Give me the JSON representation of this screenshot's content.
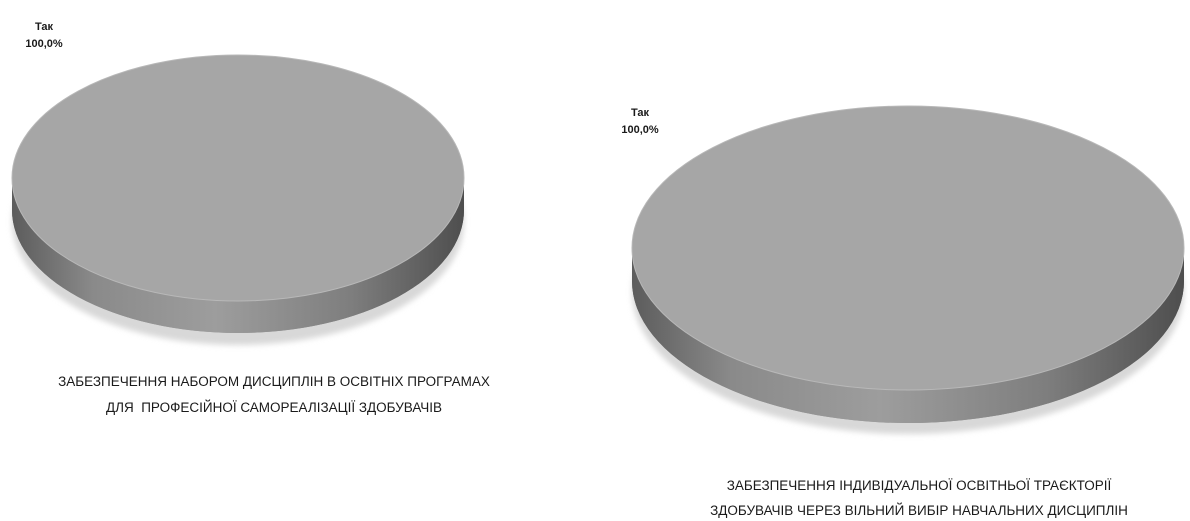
{
  "chart_data": [
    {
      "type": "pie",
      "categories": [
        "Так"
      ],
      "values": [
        100.0
      ],
      "data_labels": [
        {
          "category": "Так",
          "value": "100,0%"
        }
      ],
      "caption_lines": [
        "ЗАБЕЗПЕЧЕННЯ НАБОРОМ ДИСЦИПЛІН В ОСВІТНІХ ПРОГРАМАХ",
        "ДЛЯ  ПРОФЕСІЙНОЇ САМОРЕАЛІЗАЦІЇ ЗДОБУВАЧІВ"
      ],
      "style": "3d",
      "colors": [
        "#a6a6a6"
      ]
    },
    {
      "type": "pie",
      "categories": [
        "Так"
      ],
      "values": [
        100.0
      ],
      "data_labels": [
        {
          "category": "Так",
          "value": "100,0%"
        }
      ],
      "caption_lines": [
        "ЗАБЕЗПЕЧЕННЯ ІНДИВІДУАЛЬНОЇ ОСВІТНЬОЇ ТРАЄКТОРІЇ",
        "ЗДОБУВАЧІВ ЧЕРЕЗ ВІЛЬНИЙ ВИБІР НАВЧАЛЬНИХ ДИСЦИПЛІН"
      ],
      "style": "3d",
      "colors": [
        "#a6a6a6"
      ]
    }
  ]
}
